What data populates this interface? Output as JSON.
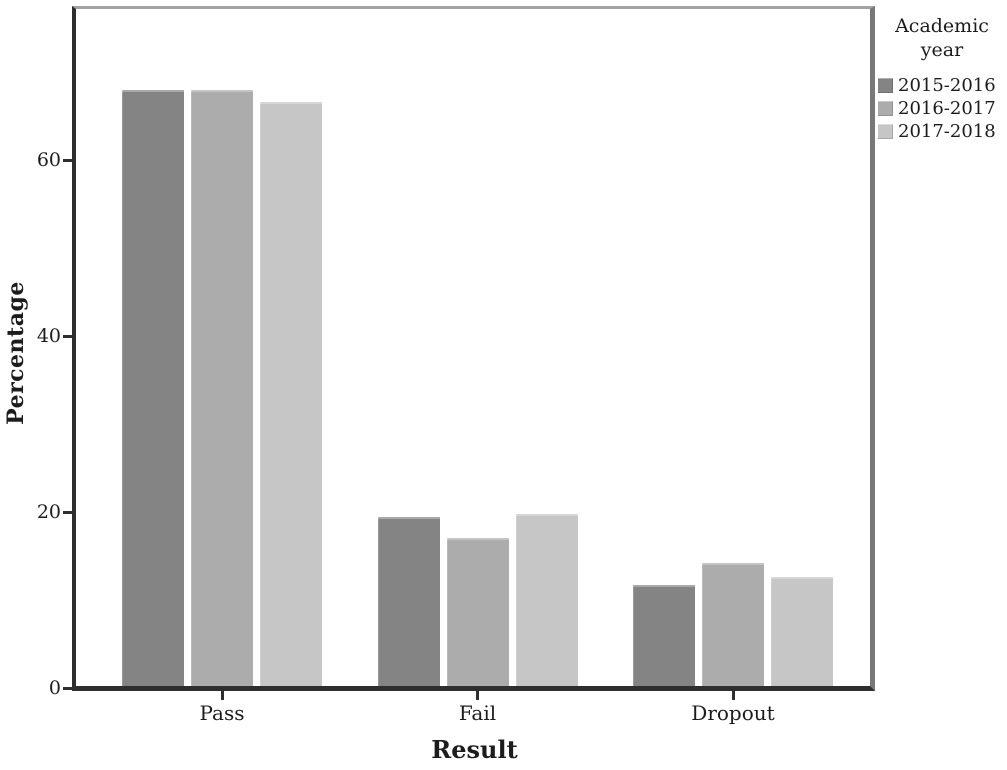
{
  "chart_data": {
    "type": "bar",
    "title": "",
    "xlabel": "Result",
    "ylabel": "Percentage",
    "categories": [
      "Pass",
      "Fail",
      "Dropout"
    ],
    "series": [
      {
        "name": "2015-2016",
        "color": "#848484",
        "values": [
          67.9,
          19.4,
          11.7
        ]
      },
      {
        "name": "2016-2017",
        "color": "#acacac",
        "values": [
          67.9,
          17.0,
          14.2
        ]
      },
      {
        "name": "2017-2018",
        "color": "#c6c6c6",
        "values": [
          66.6,
          19.8,
          12.6
        ]
      }
    ],
    "y_ticks": [
      0,
      20,
      40,
      60
    ],
    "ylim": [
      0,
      77
    ],
    "legend_title": "Academic year",
    "legend_position": "right",
    "grid": false
  },
  "colors": {
    "axis_line": "#2e2e2e",
    "frame_top": "#a2a2a2",
    "frame_right": "#787878",
    "background": "#ffffff",
    "text": "#1c1c1c"
  }
}
